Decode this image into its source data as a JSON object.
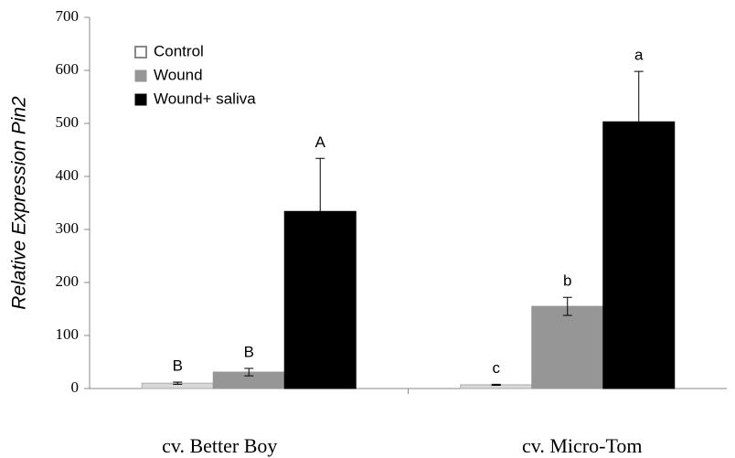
{
  "chart_data": {
    "type": "bar",
    "y_label": "Relative Expression Pin2",
    "categories": [
      "cv. Better Boy",
      "cv. Micro-Tom"
    ],
    "series": [
      {
        "name": "Control",
        "color": "#d9d9d9",
        "values": [
          10,
          7
        ],
        "errors": [
          2,
          1
        ],
        "letters": [
          "B",
          "c"
        ]
      },
      {
        "name": "Wound",
        "color": "#969696",
        "values": [
          31,
          155
        ],
        "errors": [
          7,
          17
        ],
        "letters": [
          "B",
          "b"
        ]
      },
      {
        "name": "Wound+ saliva",
        "color": "#000000",
        "values": [
          334,
          503
        ],
        "errors": [
          100,
          95
        ],
        "letters": [
          "A",
          "a"
        ]
      }
    ],
    "ylim": [
      0,
      700
    ],
    "yticks": [
      0,
      100,
      200,
      300,
      400,
      500,
      600,
      700
    ],
    "legend": "top-left"
  }
}
